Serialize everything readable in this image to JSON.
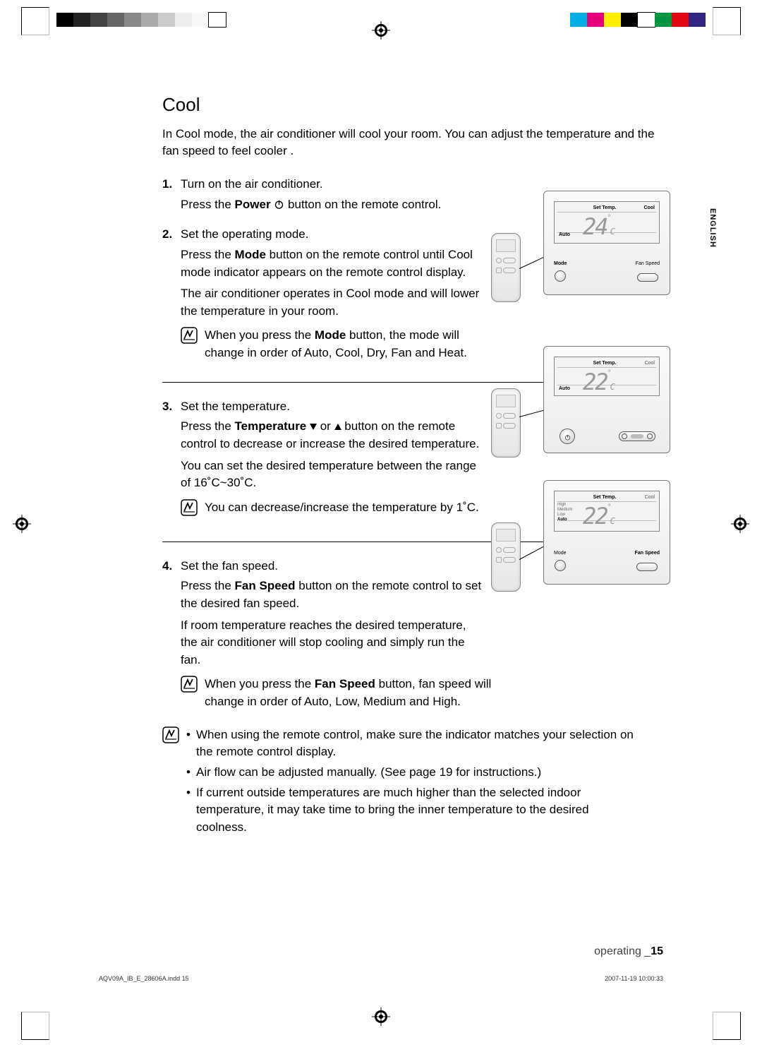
{
  "printer_marks": {
    "gray_swatches": [
      "#000000",
      "#222222",
      "#444444",
      "#666666",
      "#888888",
      "#aaaaaa",
      "#cccccc",
      "#eeeeee",
      "#f8f8f8",
      "#ffffff"
    ],
    "color_swatches": [
      "#00aee6",
      "#e6007e",
      "#ffed00",
      "#000000",
      "#ffffff",
      "#009640",
      "#e30613",
      "#312783"
    ],
    "imprint_file": "AQV09A_IB_E_28606A.indd   15",
    "imprint_date": "2007-11-19   10:00:33"
  },
  "language_tab": "ENGLISH",
  "section": {
    "title": "Cool",
    "intro": "In Cool mode, the air conditioner will cool your room. You can adjust the temperature and the fan speed to feel cooler ."
  },
  "steps": {
    "s1": {
      "title": "Turn on the air conditioner.",
      "line_pre": "Press the ",
      "line_bold": "Power",
      "line_post": " button on the remote control."
    },
    "s2": {
      "title": "Set the operating mode.",
      "p1_pre": "Press the ",
      "p1_bold": "Mode",
      "p1_post": " button on the remote control until Cool mode indicator appears on the remote control display.",
      "p2": "The air conditioner operates in Cool mode and will lower the temperature in your room.",
      "note_pre": "When you press the ",
      "note_bold": "Mode",
      "note_post": " button, the mode will change in order of Auto, Cool, Dry, Fan and Heat."
    },
    "s3": {
      "title": "Set the temperature.",
      "p1_pre": "Press the ",
      "p1_bold": "Temperature",
      "p1_post1": " or ",
      "p1_post2": " button on the remote control to decrease or increase the desired temperature.",
      "p2": "You can set the desired temperature between the range of 16˚C~30˚C.",
      "note": "You can decrease/increase the temperature by 1˚C."
    },
    "s4": {
      "title": "Set the fan speed.",
      "p1_pre": "Press the ",
      "p1_bold": "Fan Speed",
      "p1_post": " button on the remote control to set the desired fan speed.",
      "p2": "If room temperature reaches the desired temperature, the air conditioner will stop cooling and simply run the fan.",
      "note_pre": "When you press the ",
      "note_bold": "Fan Speed",
      "note_post": " button, fan speed will change in order of Auto, Low, Medium and High."
    }
  },
  "final_notes": {
    "b1": "When using the remote control, make sure the indicator matches your selection on the remote control display.",
    "b2": "Air flow can be adjusted manually. (See page 19 for instructions.)",
    "b3": "If current outside temperatures are much higher than the selected indoor temperature, it may take time to bring the inner temperature to the desired coolness."
  },
  "figures": {
    "fig1": {
      "lcd": {
        "set_temp_label": "Set Temp.",
        "mode_label_right": "Cool",
        "auto_label": "Auto",
        "temp_value": "24",
        "temp_unit": "˚C"
      },
      "buttons": {
        "mode_label": "Mode",
        "mode_bold": true,
        "fanspeed_label": "Fan Speed",
        "fanspeed_bold": false
      }
    },
    "fig2": {
      "lcd": {
        "set_temp_label": "Set Temp.",
        "mode_label_right": "Cool",
        "auto_label": "Auto",
        "temp_value": "22",
        "temp_unit": "˚C"
      },
      "has_power_button": true,
      "has_slider": true
    },
    "fig3": {
      "lcd": {
        "set_temp_label": "Set Temp.",
        "mode_label_right": "Cool",
        "temp_value": "22",
        "temp_unit": "˚C",
        "fan_levels": {
          "high": "High",
          "medium": "Medium",
          "low": "Low",
          "auto": "Auto",
          "bold": "Auto"
        }
      },
      "buttons": {
        "mode_label": "Mode",
        "mode_bold": false,
        "fanspeed_label": "Fan Speed",
        "fanspeed_bold": true
      }
    }
  },
  "footer": {
    "section_name": "operating _",
    "page_no": "15"
  },
  "colors": {
    "text": "#000000",
    "lcd_temp": "#999999",
    "border": "#777777"
  }
}
